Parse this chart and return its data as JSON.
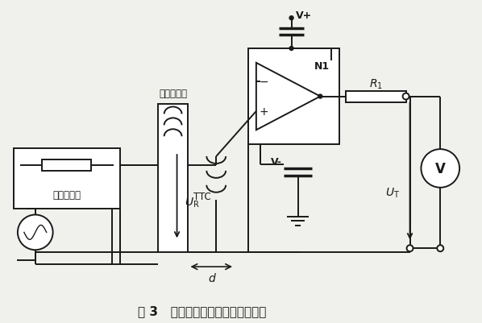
{
  "title": "图 3   测试磁场耦合因子的电路框图",
  "bg_color": "#f0f0ec",
  "line_color": "#1a1a1a",
  "label_waveform": "波形发生器",
  "label_reader_coil": "阅读器线圈",
  "label_d": "d",
  "label_TTC": "TTC",
  "label_Vplus": "V+",
  "label_Vminus": "V-",
  "label_V": "V",
  "label_N1": "N1"
}
